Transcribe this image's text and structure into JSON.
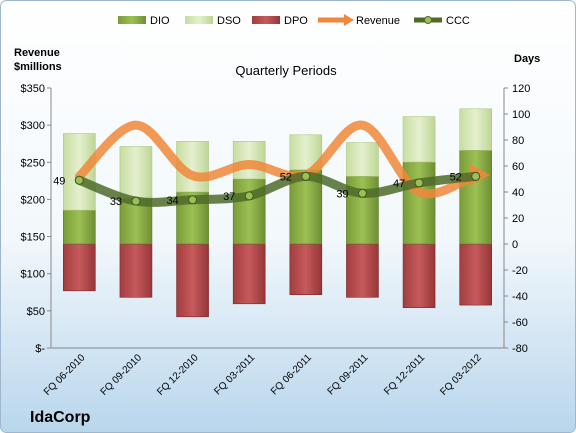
{
  "colors": {
    "background_top": "#ffffff",
    "background_bottom": "#bcd8ee",
    "dio": "#8fb34a",
    "dso": "#d6e8b4",
    "dpo": "#b84c4e",
    "revenue": "#f0873a",
    "ccc": "#4f6b2a"
  },
  "chart_data": {
    "type": "bar",
    "title": "Quarterly Periods",
    "company": "IdaCorp",
    "left_axis": {
      "label_line1": "Revenue",
      "label_line2": "$millions",
      "ylim": [
        0,
        350
      ],
      "ticks": [
        0,
        50,
        100,
        150,
        200,
        250,
        300,
        350
      ],
      "tick_labels": [
        "$-",
        "$50",
        "$100",
        "$150",
        "$200",
        "$250",
        "$300",
        "$350"
      ]
    },
    "right_axis": {
      "label": "Days",
      "ylim": [
        -80,
        120
      ],
      "ticks": [
        -80,
        -60,
        -40,
        -20,
        0,
        20,
        40,
        60,
        80,
        100,
        120
      ],
      "tick_labels": [
        "-80",
        "-60",
        "-40",
        "-20",
        "0",
        "20",
        "40",
        "60",
        "80",
        "100",
        "120"
      ]
    },
    "legend_position": "top",
    "grid": false,
    "categories": [
      "FQ 06-2010",
      "FQ 09-2010",
      "FQ 12-2010",
      "FQ 03-2011",
      "FQ 06-2011",
      "FQ 09-2011",
      "FQ 12-2011",
      "FQ 03-2012"
    ],
    "series": [
      {
        "name": "DIO",
        "axis": "right",
        "kind": "stacked-bar",
        "values": [
          26,
          35,
          40,
          50,
          57,
          52,
          63,
          72
        ]
      },
      {
        "name": "DSO",
        "axis": "right",
        "kind": "stacked-bar",
        "values": [
          59,
          40,
          39,
          29,
          27,
          26,
          35,
          32
        ]
      },
      {
        "name": "DPO",
        "axis": "right",
        "kind": "negative-bar",
        "values": [
          -36,
          -41,
          -56,
          -46,
          -39,
          -41,
          -49,
          -47
        ]
      },
      {
        "name": "Revenue",
        "axis": "left",
        "kind": "line",
        "values": [
          231,
          300,
          232,
          247,
          233,
          300,
          210,
          233
        ]
      },
      {
        "name": "CCC",
        "axis": "right",
        "kind": "line",
        "values": [
          49,
          33,
          34,
          37,
          52,
          39,
          47,
          52
        ],
        "data_labels": [
          "49",
          "33",
          "34",
          "37",
          "52",
          "39",
          "47",
          "52"
        ]
      }
    ]
  }
}
